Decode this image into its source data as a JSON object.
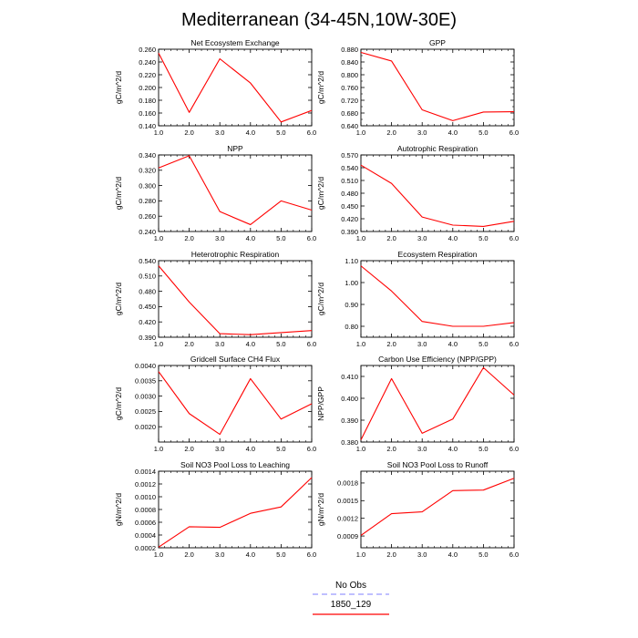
{
  "figure": {
    "title": "Mediterranean (34-45N,10W-30E)"
  },
  "legend": {
    "entries": [
      {
        "label": "No Obs",
        "color": "#9999ff",
        "dash": true
      },
      {
        "label": "1850_129",
        "color": "#ff0000",
        "dash": false
      }
    ]
  },
  "colors": {
    "line": "#ff0000",
    "axis": "#000000",
    "obs": "#9999ff"
  },
  "chart_data": [
    {
      "type": "line",
      "title": "Net Ecosystem Exchange",
      "ylabel": "gC/m^2/d",
      "xlabel": "",
      "x": [
        1,
        2,
        3,
        4,
        5,
        6
      ],
      "xticks": [
        "1.0",
        "2.0",
        "3.0",
        "4.0",
        "5.0",
        "6.0"
      ],
      "ylim": [
        0.14,
        0.26
      ],
      "yticks": [
        0.14,
        0.16,
        0.18,
        0.2,
        0.22,
        0.24,
        0.26
      ],
      "ytick_labels": [
        "0.140",
        "0.160",
        "0.180",
        "0.200",
        "0.220",
        "0.240",
        "0.260"
      ],
      "series": [
        {
          "name": "1850_129",
          "values": [
            0.254,
            0.161,
            0.245,
            0.207,
            0.146,
            0.164
          ]
        }
      ]
    },
    {
      "type": "line",
      "title": "GPP",
      "ylabel": "gC/m^2/d",
      "xlabel": "",
      "x": [
        1,
        2,
        3,
        4,
        5,
        6
      ],
      "xticks": [
        "1.0",
        "2.0",
        "3.0",
        "4.0",
        "5.0",
        "6.0"
      ],
      "ylim": [
        0.64,
        0.88
      ],
      "yticks": [
        0.64,
        0.68,
        0.72,
        0.76,
        0.8,
        0.84,
        0.88
      ],
      "ytick_labels": [
        "0.640",
        "0.680",
        "0.720",
        "0.760",
        "0.800",
        "0.840",
        "0.880"
      ],
      "minor_yticks": [
        0.66,
        0.7,
        0.74,
        0.78,
        0.82,
        0.86
      ],
      "series": [
        {
          "name": "1850_129",
          "values": [
            0.87,
            0.843,
            0.69,
            0.656,
            0.683,
            0.684
          ]
        }
      ]
    },
    {
      "type": "line",
      "title": "NPP",
      "ylabel": "gC/m^2/d",
      "xlabel": "",
      "x": [
        1,
        2,
        3,
        4,
        5,
        6
      ],
      "xticks": [
        "1.0",
        "2.0",
        "3.0",
        "4.0",
        "5.0",
        "6.0"
      ],
      "ylim": [
        0.24,
        0.34
      ],
      "yticks": [
        0.24,
        0.26,
        0.28,
        0.3,
        0.32,
        0.34
      ],
      "ytick_labels": [
        "0.240",
        "0.260",
        "0.280",
        "0.300",
        "0.320",
        "0.340"
      ],
      "series": [
        {
          "name": "1850_129",
          "values": [
            0.323,
            0.339,
            0.266,
            0.249,
            0.28,
            0.268
          ]
        }
      ]
    },
    {
      "type": "line",
      "title": "Autotrophic Respiration",
      "ylabel": "gC/m^2/d",
      "xlabel": "",
      "x": [
        1,
        2,
        3,
        4,
        5,
        6
      ],
      "xticks": [
        "1.0",
        "2.0",
        "3.0",
        "4.0",
        "5.0",
        "6.0"
      ],
      "ylim": [
        0.39,
        0.57
      ],
      "yticks": [
        0.39,
        0.42,
        0.45,
        0.48,
        0.51,
        0.54,
        0.57
      ],
      "ytick_labels": [
        "0.390",
        "0.420",
        "0.450",
        "0.480",
        "0.510",
        "0.540",
        "0.570"
      ],
      "series": [
        {
          "name": "1850_129",
          "values": [
            0.546,
            0.503,
            0.424,
            0.405,
            0.402,
            0.414
          ]
        }
      ]
    },
    {
      "type": "line",
      "title": "Heterotrophic Respiration",
      "ylabel": "gC/m^2/d",
      "xlabel": "",
      "x": [
        1,
        2,
        3,
        4,
        5,
        6
      ],
      "xticks": [
        "1.0",
        "2.0",
        "3.0",
        "4.0",
        "5.0",
        "6.0"
      ],
      "ylim": [
        0.39,
        0.54
      ],
      "yticks": [
        0.39,
        0.42,
        0.45,
        0.48,
        0.51,
        0.54
      ],
      "ytick_labels": [
        "0.390",
        "0.420",
        "0.450",
        "0.480",
        "0.510",
        "0.540"
      ],
      "series": [
        {
          "name": "1850_129",
          "values": [
            0.53,
            0.459,
            0.397,
            0.395,
            0.399,
            0.403
          ]
        }
      ]
    },
    {
      "type": "line",
      "title": "Ecosystem Respiration",
      "ylabel": "gC/m^2/d",
      "xlabel": "",
      "x": [
        1,
        2,
        3,
        4,
        5,
        6
      ],
      "xticks": [
        "1.0",
        "2.0",
        "3.0",
        "4.0",
        "5.0",
        "6.0"
      ],
      "ylim": [
        0.75,
        1.1
      ],
      "yticks": [
        0.8,
        0.9,
        1.0,
        1.1
      ],
      "ytick_labels": [
        "0.80",
        "0.90",
        "1.00",
        "1.10"
      ],
      "series": [
        {
          "name": "1850_129",
          "values": [
            1.076,
            0.961,
            0.822,
            0.8,
            0.8,
            0.817
          ]
        }
      ]
    },
    {
      "type": "line",
      "title": "Gridcell Surface CH4 Flux",
      "ylabel": "gC/m^2/d",
      "xlabel": "",
      "x": [
        1,
        2,
        3,
        4,
        5,
        6
      ],
      "xticks": [
        "1.0",
        "2.0",
        "3.0",
        "4.0",
        "5.0",
        "6.0"
      ],
      "ylim": [
        0.0015,
        0.004
      ],
      "yticks": [
        0.002,
        0.0025,
        0.003,
        0.0035,
        0.004
      ],
      "ytick_labels": [
        "0.0020",
        "0.0025",
        "0.0030",
        "0.0035",
        "0.0040"
      ],
      "series": [
        {
          "name": "1850_129",
          "values": [
            0.0038,
            0.00243,
            0.00175,
            0.00357,
            0.00225,
            0.00275
          ]
        }
      ]
    },
    {
      "type": "line",
      "title": "Carbon Use Efficiency (NPP/GPP)",
      "ylabel": "NPP/GPP",
      "xlabel": "",
      "x": [
        1,
        2,
        3,
        4,
        5,
        6
      ],
      "xticks": [
        "1.0",
        "2.0",
        "3.0",
        "4.0",
        "5.0",
        "6.0"
      ],
      "ylim": [
        0.38,
        0.415
      ],
      "yticks": [
        0.38,
        0.39,
        0.4,
        0.41
      ],
      "ytick_labels": [
        "0.380",
        "0.390",
        "0.400",
        "0.410"
      ],
      "series": [
        {
          "name": "1850_129",
          "values": [
            0.381,
            0.409,
            0.384,
            0.3905,
            0.414,
            0.4015
          ]
        }
      ]
    },
    {
      "type": "line",
      "title": "Soil NO3 Pool Loss to Leaching",
      "ylabel": "gN/m^2/d",
      "xlabel": "",
      "x": [
        1,
        2,
        3,
        4,
        5,
        6
      ],
      "xticks": [
        "1.0",
        "2.0",
        "3.0",
        "4.0",
        "5.0",
        "6.0"
      ],
      "ylim": [
        0.0002,
        0.0014
      ],
      "yticks": [
        0.0002,
        0.0004,
        0.0006,
        0.0008,
        0.001,
        0.0012,
        0.0014
      ],
      "ytick_labels": [
        "0.0002",
        "0.0004",
        "0.0006",
        "0.0008",
        "0.0010",
        "0.0012",
        "0.0014"
      ],
      "series": [
        {
          "name": "1850_129",
          "values": [
            0.00021,
            0.00053,
            0.00052,
            0.00074,
            0.00084,
            0.0013
          ]
        }
      ]
    },
    {
      "type": "line",
      "title": "Soil NO3 Pool Loss to Runoff",
      "ylabel": "gN/m^2/d",
      "xlabel": "",
      "x": [
        1,
        2,
        3,
        4,
        5,
        6
      ],
      "xticks": [
        "1.0",
        "2.0",
        "3.0",
        "4.0",
        "5.0",
        "6.0"
      ],
      "ylim": [
        0.0007,
        0.002
      ],
      "yticks": [
        0.0009,
        0.0012,
        0.0015,
        0.0018
      ],
      "ytick_labels": [
        "0.0009",
        "0.0012",
        "0.0015",
        "0.0018"
      ],
      "series": [
        {
          "name": "1850_129",
          "values": [
            0.00091,
            0.00128,
            0.00131,
            0.00167,
            0.00168,
            0.00188
          ]
        }
      ]
    }
  ]
}
